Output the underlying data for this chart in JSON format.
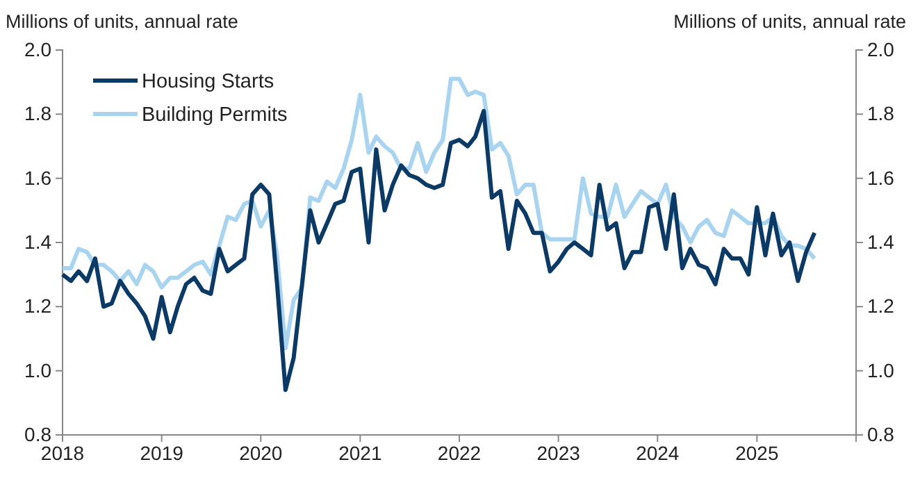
{
  "chart_data": {
    "type": "line",
    "ylabel": "Millions of units, annual rate",
    "y2label": "Millions of units, annual rate",
    "x": [
      "2018-01",
      "2018-02",
      "2018-03",
      "2018-04",
      "2018-05",
      "2018-06",
      "2018-07",
      "2018-08",
      "2018-09",
      "2018-10",
      "2018-11",
      "2018-12",
      "2019-01",
      "2019-02",
      "2019-03",
      "2019-04",
      "2019-05",
      "2019-06",
      "2019-07",
      "2019-08",
      "2019-09",
      "2019-10",
      "2019-11",
      "2019-12",
      "2020-01",
      "2020-02",
      "2020-03",
      "2020-04",
      "2020-05",
      "2020-06",
      "2020-07",
      "2020-08",
      "2020-09",
      "2020-10",
      "2020-11",
      "2020-12",
      "2021-01",
      "2021-02",
      "2021-03",
      "2021-04",
      "2021-05",
      "2021-06",
      "2021-07",
      "2021-08",
      "2021-09",
      "2021-10",
      "2021-11",
      "2021-12",
      "2022-01",
      "2022-02",
      "2022-03",
      "2022-04",
      "2022-05",
      "2022-06",
      "2022-07",
      "2022-08",
      "2022-09",
      "2022-10",
      "2022-11",
      "2022-12",
      "2023-01",
      "2023-02",
      "2023-03",
      "2023-04",
      "2023-05",
      "2023-06",
      "2023-07",
      "2023-08",
      "2023-09",
      "2023-10",
      "2023-11",
      "2023-12",
      "2024-01",
      "2024-02",
      "2024-03",
      "2024-04",
      "2024-05",
      "2024-06",
      "2024-07",
      "2024-08",
      "2024-09",
      "2024-10",
      "2024-11",
      "2024-12",
      "2025-01",
      "2025-02",
      "2025-03",
      "2025-04",
      "2025-05",
      "2025-06",
      "2025-07",
      "2025-08"
    ],
    "series": [
      {
        "name": "Housing Starts",
        "color": "#0b3a66",
        "values": [
          1.3,
          1.28,
          1.31,
          1.28,
          1.35,
          1.2,
          1.21,
          1.28,
          1.24,
          1.21,
          1.17,
          1.1,
          1.23,
          1.12,
          1.2,
          1.27,
          1.29,
          1.25,
          1.24,
          1.38,
          1.31,
          1.33,
          1.35,
          1.55,
          1.58,
          1.55,
          1.27,
          0.94,
          1.04,
          1.27,
          1.5,
          1.4,
          1.46,
          1.52,
          1.53,
          1.62,
          1.63,
          1.4,
          1.69,
          1.5,
          1.58,
          1.64,
          1.61,
          1.6,
          1.58,
          1.57,
          1.58,
          1.71,
          1.72,
          1.7,
          1.73,
          1.81,
          1.54,
          1.56,
          1.38,
          1.53,
          1.49,
          1.43,
          1.43,
          1.31,
          1.34,
          1.38,
          1.4,
          1.38,
          1.36,
          1.58,
          1.44,
          1.46,
          1.32,
          1.37,
          1.37,
          1.51,
          1.52,
          1.38,
          1.55,
          1.32,
          1.38,
          1.33,
          1.32,
          1.27,
          1.38,
          1.35,
          1.35,
          1.3,
          1.51,
          1.36,
          1.49,
          1.36,
          1.4,
          1.28,
          1.37,
          1.43
        ]
      },
      {
        "name": "Building Permits",
        "color": "#a8d4f0",
        "values": [
          1.32,
          1.32,
          1.38,
          1.37,
          1.33,
          1.33,
          1.31,
          1.28,
          1.31,
          1.27,
          1.33,
          1.31,
          1.26,
          1.29,
          1.29,
          1.31,
          1.33,
          1.34,
          1.3,
          1.39,
          1.48,
          1.47,
          1.52,
          1.53,
          1.45,
          1.5,
          1.36,
          1.07,
          1.22,
          1.26,
          1.54,
          1.53,
          1.59,
          1.57,
          1.63,
          1.72,
          1.86,
          1.68,
          1.73,
          1.7,
          1.68,
          1.63,
          1.63,
          1.71,
          1.62,
          1.68,
          1.72,
          1.91,
          1.91,
          1.86,
          1.87,
          1.86,
          1.69,
          1.71,
          1.67,
          1.55,
          1.58,
          1.58,
          1.43,
          1.41,
          1.41,
          1.41,
          1.41,
          1.6,
          1.49,
          1.48,
          1.48,
          1.58,
          1.48,
          1.52,
          1.56,
          1.54,
          1.52,
          1.58,
          1.48,
          1.45,
          1.4,
          1.45,
          1.47,
          1.43,
          1.42,
          1.5,
          1.48,
          1.46,
          1.46,
          1.46,
          1.48,
          1.42,
          1.39,
          1.39,
          1.38,
          1.35
        ]
      }
    ],
    "xlim": [
      "2018-01-01",
      "2026-01-01"
    ],
    "xticks": [
      {
        "value": "2018-01-01",
        "label": "2018"
      },
      {
        "value": "2019-01-01",
        "label": "2019"
      },
      {
        "value": "2020-01-01",
        "label": "2020"
      },
      {
        "value": "2021-01-01",
        "label": "2021"
      },
      {
        "value": "2022-01-01",
        "label": "2022"
      },
      {
        "value": "2023-01-01",
        "label": "2023"
      },
      {
        "value": "2024-01-01",
        "label": "2024"
      },
      {
        "value": "2025-01-01",
        "label": "2025"
      },
      {
        "value": "2026-01-01",
        "label": null
      }
    ],
    "ylim": [
      0.8,
      2.0
    ],
    "yticks": [
      {
        "value": 0.8,
        "label": "0.8"
      },
      {
        "value": 1.0,
        "label": "1.0"
      },
      {
        "value": 1.2,
        "label": "1.2"
      },
      {
        "value": 1.4,
        "label": "1.4"
      },
      {
        "value": 1.6,
        "label": "1.6"
      },
      {
        "value": 1.8,
        "label": "1.8"
      },
      {
        "value": 2.0,
        "label": "2.0"
      }
    ],
    "y2lim": [
      0.8,
      2.0
    ],
    "y2ticks": [
      {
        "value": 0.8,
        "label": "0.8"
      },
      {
        "value": 1.0,
        "label": "1.0"
      },
      {
        "value": 1.2,
        "label": "1.2"
      },
      {
        "value": 1.4,
        "label": "1.4"
      },
      {
        "value": 1.6,
        "label": "1.6"
      },
      {
        "value": 1.8,
        "label": "1.8"
      },
      {
        "value": 2.0,
        "label": "2.0"
      }
    ],
    "grid": false,
    "legend": "top left",
    "marker": "none",
    "line_style": "solid"
  }
}
